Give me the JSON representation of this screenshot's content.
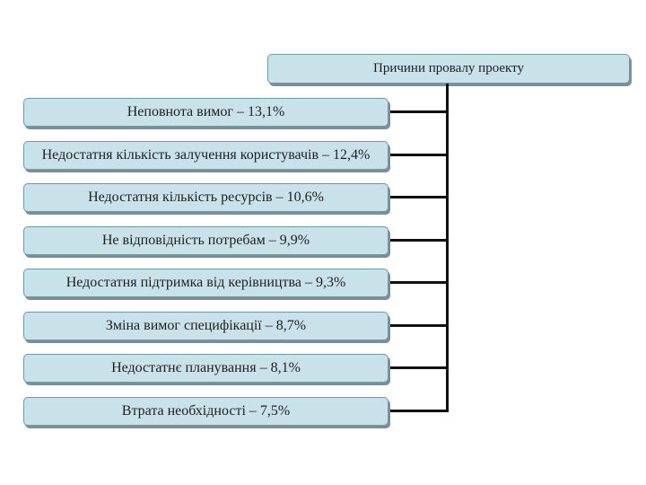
{
  "diagram": {
    "title": "Причини провалу проекту",
    "causes": [
      "Неповнота вимог – 13,1%",
      "Недостатня кількість залучення користувачів – 12,4%",
      "Недостатня кількість ресурсів – 10,6%",
      "Не відповідність потребам – 9,9%",
      "Недостатня підтримка від керівництва – 9,3%",
      "Зміна вимог специфікації – 8,7%",
      "Недостатнє планування – 8,1%",
      "Втрата необхідності – 7,5%"
    ]
  }
}
